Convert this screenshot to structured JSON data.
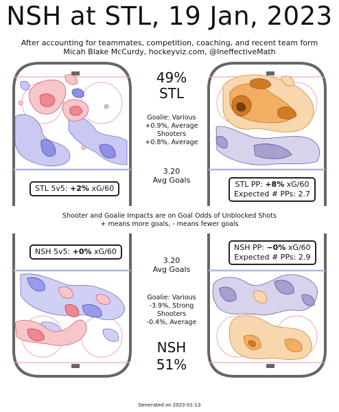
{
  "title": "NSH at STL, 19 Jan, 2023",
  "subtitle1": "After accounting for teammates, competition, coaching, and recent team form",
  "subtitle2": "Micah Blake McCurdy, hockeyviz.com, @IneffectiveMath",
  "mid_note1": "Shooter and Goalie Impacts are on Goal Odds of Unblocked Shots",
  "mid_note2": "+ means more goals, - means fewer goals",
  "footer": "Generated on 2023-01-13",
  "top": {
    "win_pct": "49%",
    "team": "STL",
    "goalie_line1": "Goalie: Various",
    "goalie_line2": "+0.9%, Average",
    "shooter_line1": "Shooters",
    "shooter_line2": "+0.8%, Average",
    "avg_goals_value": "3.20",
    "avg_goals_label": "Avg Goals",
    "ev_box_prefix": "STL 5v5: ",
    "ev_box_value": "+2%",
    "ev_box_suffix": " xG/60",
    "pp_box_prefix": "STL PP: ",
    "pp_box_value": "+8%",
    "pp_box_suffix": " xG/60",
    "pp_expected": "Expected # PPs: 2.7"
  },
  "bottom": {
    "win_pct": "51%",
    "team": "NSH",
    "goalie_line1": "Goalie: Various",
    "goalie_line2": "-3.9%, Strong",
    "shooter_line1": "Shooters",
    "shooter_line2": "-0.4%, Average",
    "avg_goals_value": "3.20",
    "avg_goals_label": "Avg Goals",
    "ev_box_prefix": "NSH 5v5: ",
    "ev_box_value": "+0%",
    "ev_box_suffix": " xG/60",
    "pp_box_prefix": "NSH PP: ",
    "pp_box_value": "−0%",
    "pp_box_suffix": " xG/60",
    "pp_expected": "Expected # PPs: 2.9"
  },
  "colors": {
    "ev_plus": "#e8555f",
    "ev_minus": "#5a5ae0",
    "pp_plus": "#e8923a",
    "pp_minus": "#6a5aa8",
    "rink_line": "#666666",
    "blue_line": "#aab8dd",
    "red_line": "#f0a8b0"
  }
}
